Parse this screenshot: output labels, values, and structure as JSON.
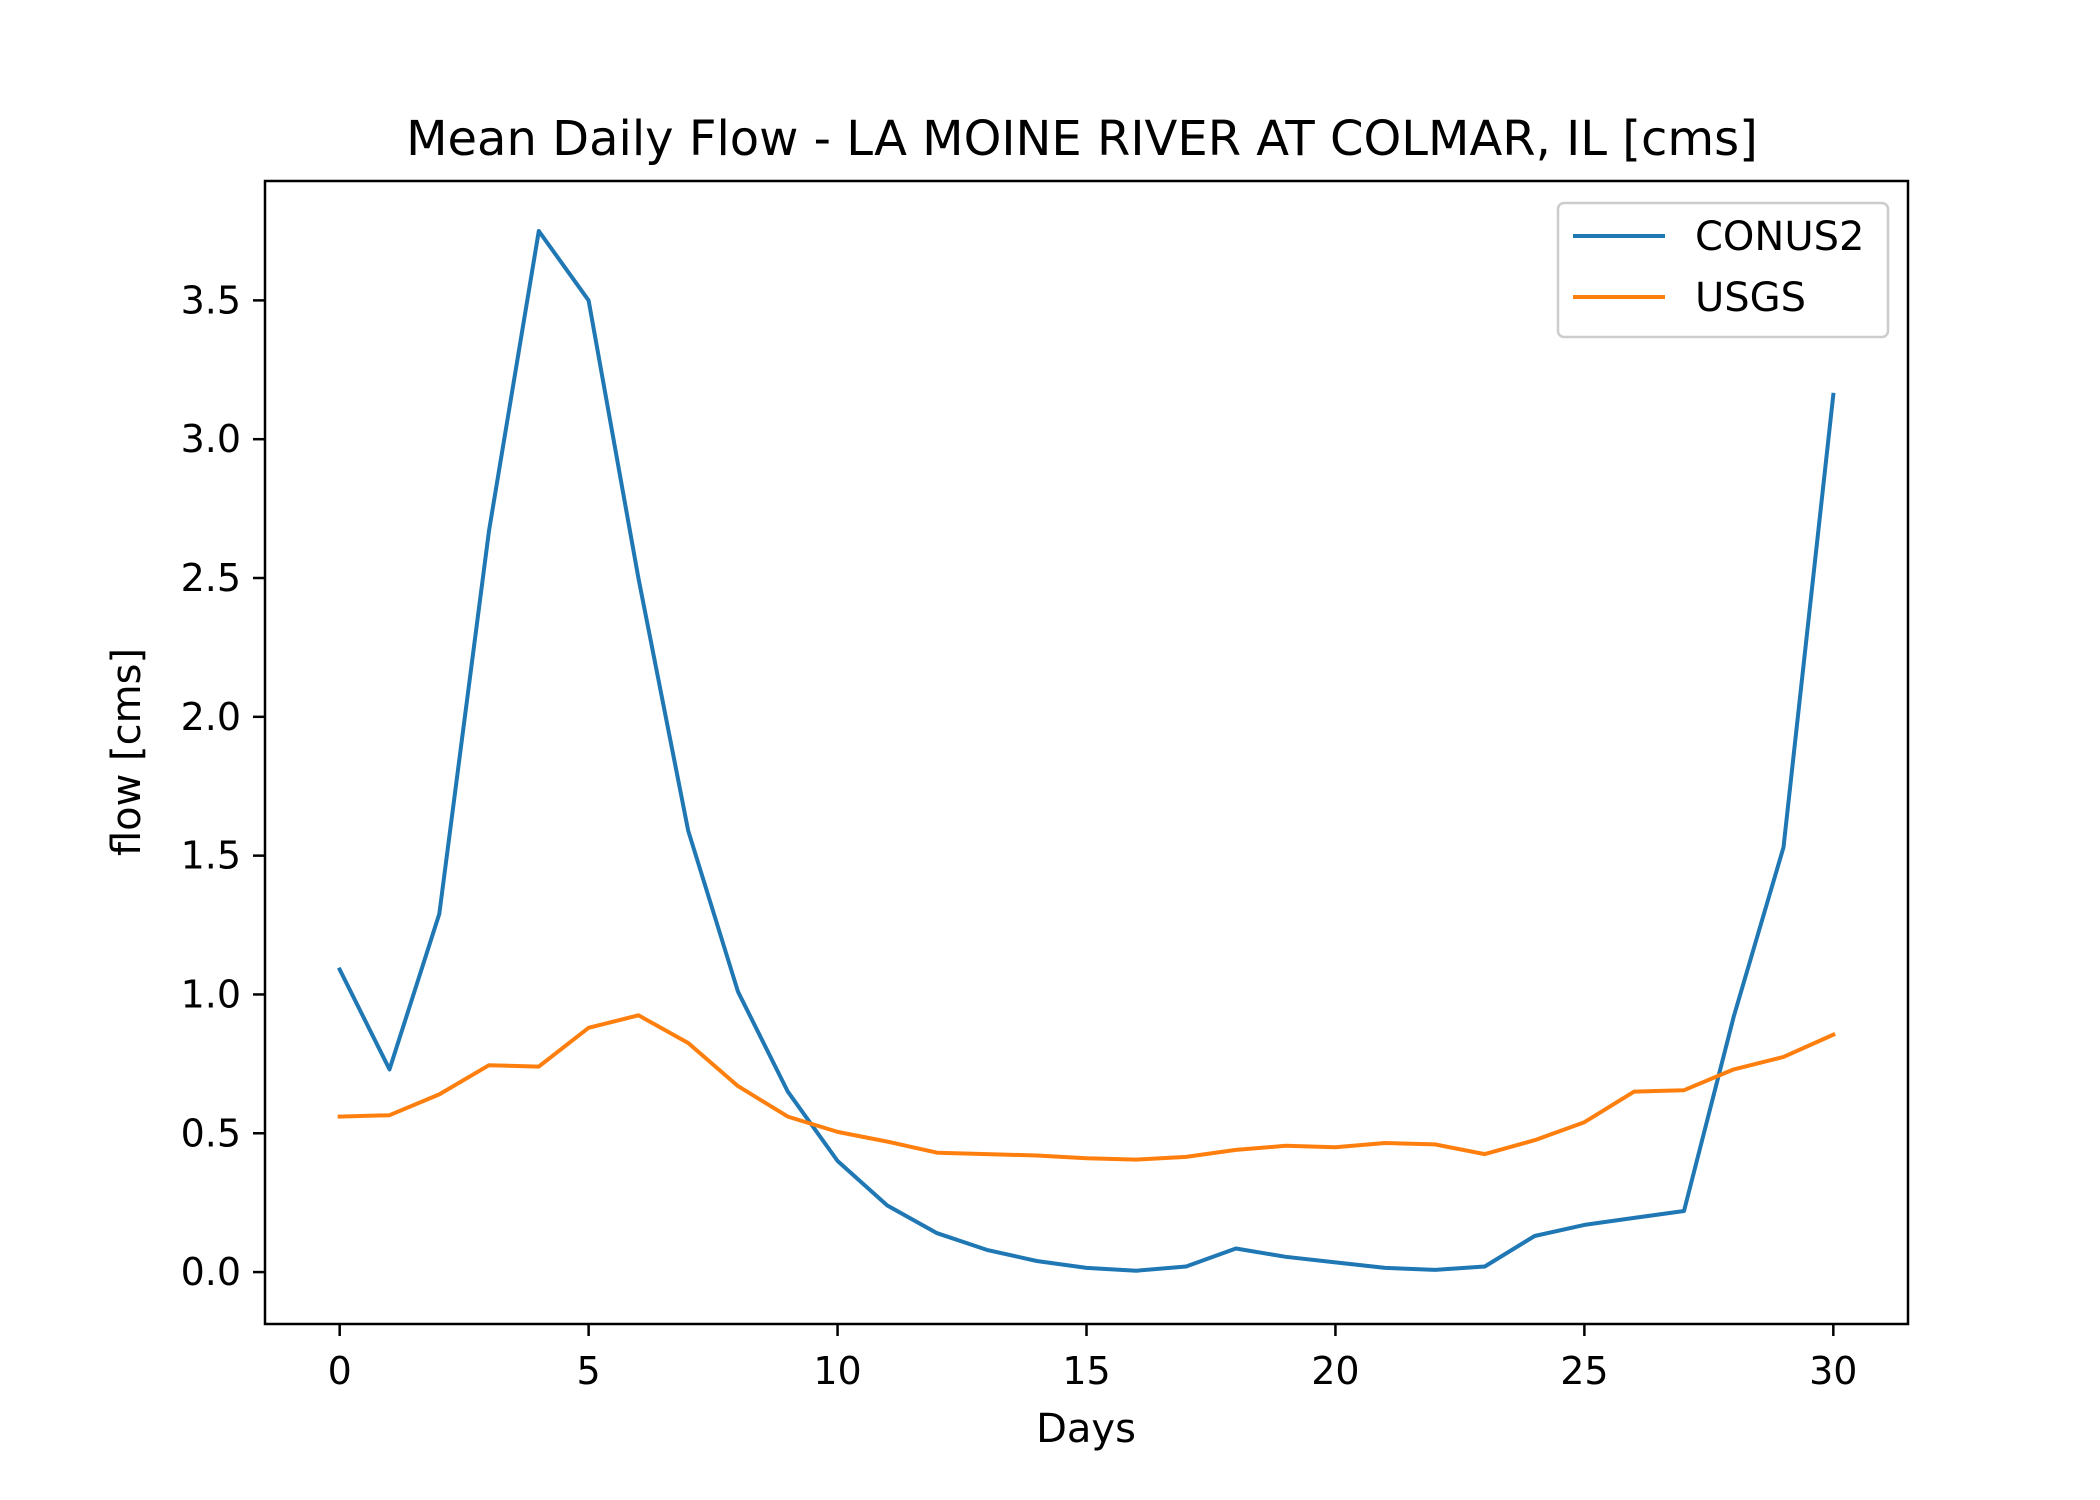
{
  "chart_data": {
    "type": "line",
    "title": "Mean Daily Flow - LA MOINE RIVER AT COLMAR, IL [cms]",
    "xlabel": "Days",
    "ylabel": "flow [cms]",
    "xlim": [
      -1.5,
      31.5
    ],
    "ylim": [
      -0.187,
      3.93
    ],
    "xticks": [
      0,
      5,
      10,
      15,
      20,
      25,
      30
    ],
    "xtick_labels": [
      "0",
      "5",
      "10",
      "15",
      "20",
      "25",
      "30"
    ],
    "yticks": [
      0.0,
      0.5,
      1.0,
      1.5,
      2.0,
      2.5,
      3.0,
      3.5
    ],
    "ytick_labels": [
      "0.0",
      "0.5",
      "1.0",
      "1.5",
      "2.0",
      "2.5",
      "3.0",
      "3.5"
    ],
    "grid": false,
    "legend_position": "top-right",
    "x": [
      0,
      1,
      2,
      3,
      4,
      5,
      6,
      7,
      8,
      9,
      10,
      11,
      12,
      13,
      14,
      15,
      16,
      17,
      18,
      19,
      20,
      21,
      22,
      23,
      24,
      25,
      26,
      27,
      28,
      29,
      30
    ],
    "series": [
      {
        "name": "CONUS2",
        "color": "#1f77b4",
        "values": [
          1.09,
          0.73,
          1.29,
          2.67,
          3.75,
          3.5,
          2.5,
          1.59,
          1.01,
          0.65,
          0.4,
          0.24,
          0.14,
          0.08,
          0.04,
          0.015,
          0.005,
          0.02,
          0.085,
          0.055,
          0.035,
          0.015,
          0.008,
          0.02,
          0.13,
          0.17,
          0.195,
          0.22,
          0.92,
          1.53,
          3.16
        ]
      },
      {
        "name": "USGS",
        "color": "#ff7f0e",
        "values": [
          0.56,
          0.565,
          0.64,
          0.745,
          0.74,
          0.88,
          0.925,
          0.825,
          0.67,
          0.56,
          0.505,
          0.47,
          0.43,
          0.425,
          0.42,
          0.41,
          0.405,
          0.415,
          0.44,
          0.455,
          0.45,
          0.465,
          0.46,
          0.425,
          0.475,
          0.54,
          0.65,
          0.655,
          0.73,
          0.775,
          0.855
        ]
      }
    ]
  }
}
